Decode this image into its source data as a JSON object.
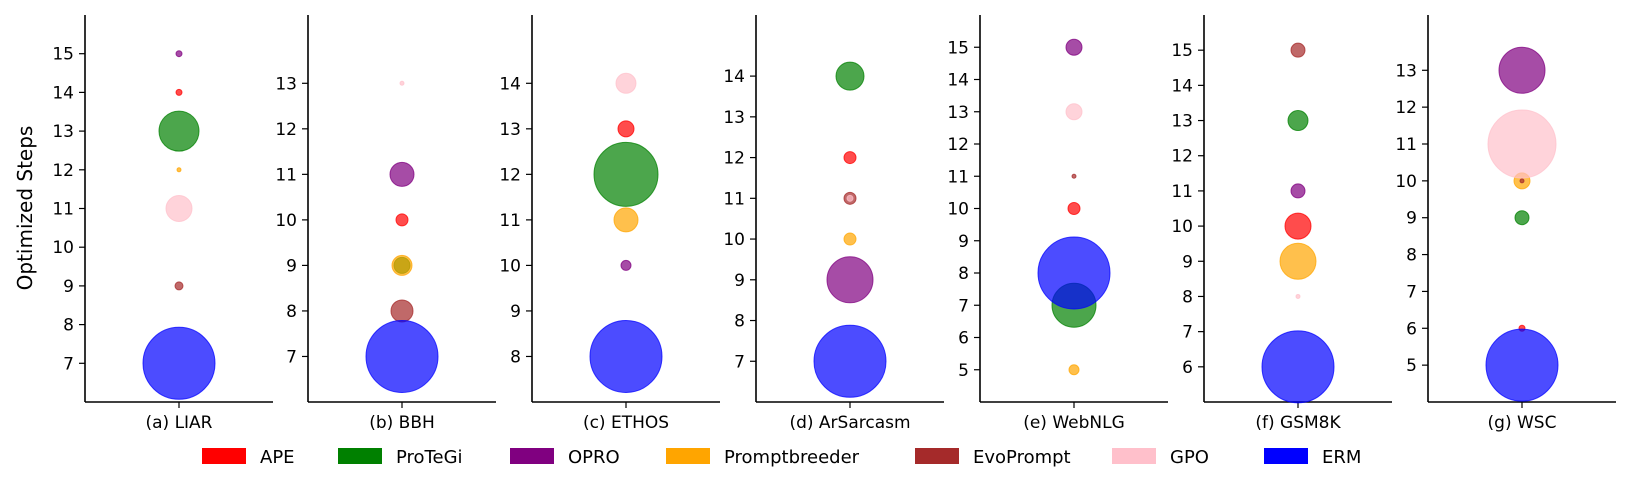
{
  "figure": {
    "ylabel": "Optimized Steps",
    "legend_placement": "bottom-center"
  },
  "methods": [
    {
      "name": "APE",
      "color": "#ff0000"
    },
    {
      "name": "ProTeGi",
      "color": "#008000"
    },
    {
      "name": "OPRO",
      "color": "#800080"
    },
    {
      "name": "Promptbreeder",
      "color": "#ffa500"
    },
    {
      "name": "EvoPrompt",
      "color": "#a52a2a"
    },
    {
      "name": "GPO",
      "color": "#ffc0cb"
    },
    {
      "name": "ERM",
      "color": "#0000ff"
    }
  ],
  "chart_data": [
    {
      "type": "scatter",
      "title": "(a) LIAR",
      "ylim": [
        6,
        16
      ],
      "yticks": [
        7,
        8,
        9,
        10,
        11,
        12,
        13,
        14,
        15
      ],
      "points": [
        {
          "method": "APE",
          "y": 14,
          "size": 3
        },
        {
          "method": "ProTeGi",
          "y": 13,
          "size": 20
        },
        {
          "method": "OPRO",
          "y": 15,
          "size": 3
        },
        {
          "method": "Promptbreeder",
          "y": 12,
          "size": 2
        },
        {
          "method": "EvoPrompt",
          "y": 9,
          "size": 4
        },
        {
          "method": "GPO",
          "y": 11,
          "size": 13
        },
        {
          "method": "ERM",
          "y": 7,
          "size": 36
        }
      ]
    },
    {
      "type": "scatter",
      "title": "(b) BBH",
      "ylim": [
        6,
        14.5
      ],
      "yticks": [
        7,
        8,
        9,
        10,
        11,
        12,
        13
      ],
      "points": [
        {
          "method": "APE",
          "y": 10,
          "size": 6
        },
        {
          "method": "ProTeGi",
          "y": 9,
          "size": 8
        },
        {
          "method": "OPRO",
          "y": 11,
          "size": 12
        },
        {
          "method": "Promptbreeder",
          "y": 9,
          "size": 10
        },
        {
          "method": "EvoPrompt",
          "y": 8,
          "size": 11
        },
        {
          "method": "GPO",
          "y": 13,
          "size": 2
        },
        {
          "method": "ERM",
          "y": 7,
          "size": 36
        }
      ]
    },
    {
      "type": "scatter",
      "title": "(c) ETHOS",
      "ylim": [
        7,
        15.5
      ],
      "yticks": [
        8,
        9,
        10,
        11,
        12,
        13,
        14
      ],
      "points": [
        {
          "method": "APE",
          "y": 13,
          "size": 8
        },
        {
          "method": "ProTeGi",
          "y": 12,
          "size": 32
        },
        {
          "method": "OPRO",
          "y": 10,
          "size": 5
        },
        {
          "method": "Promptbreeder",
          "y": 11,
          "size": 12
        },
        {
          "method": "GPO",
          "y": 14,
          "size": 10
        },
        {
          "method": "ERM",
          "y": 8,
          "size": 36
        }
      ]
    },
    {
      "type": "scatter",
      "title": "(d) ArSarcasm",
      "ylim": [
        6,
        15.5
      ],
      "yticks": [
        7,
        8,
        9,
        10,
        11,
        12,
        13,
        14
      ],
      "points": [
        {
          "method": "APE",
          "y": 12,
          "size": 6
        },
        {
          "method": "ProTeGi",
          "y": 14,
          "size": 14
        },
        {
          "method": "OPRO",
          "y": 9,
          "size": 23
        },
        {
          "method": "Promptbreeder",
          "y": 10,
          "size": 6
        },
        {
          "method": "EvoPrompt",
          "y": 11,
          "size": 6
        },
        {
          "method": "GPO",
          "y": 11,
          "size": 3
        },
        {
          "method": "ERM",
          "y": 7,
          "size": 36
        }
      ]
    },
    {
      "type": "scatter",
      "title": "(e) WebNLG",
      "ylim": [
        4,
        16
      ],
      "yticks": [
        5,
        6,
        7,
        8,
        9,
        10,
        11,
        12,
        13,
        14,
        15
      ],
      "points": [
        {
          "method": "APE",
          "y": 10,
          "size": 6
        },
        {
          "method": "ProTeGi",
          "y": 7,
          "size": 22
        },
        {
          "method": "OPRO",
          "y": 15,
          "size": 8
        },
        {
          "method": "Promptbreeder",
          "y": 5,
          "size": 5
        },
        {
          "method": "EvoPrompt",
          "y": 11,
          "size": 2
        },
        {
          "method": "GPO",
          "y": 13,
          "size": 8
        },
        {
          "method": "ERM",
          "y": 8,
          "size": 36
        }
      ]
    },
    {
      "type": "scatter",
      "title": "(f) GSM8K",
      "ylim": [
        5,
        16
      ],
      "yticks": [
        6,
        7,
        8,
        9,
        10,
        11,
        12,
        13,
        14,
        15
      ],
      "points": [
        {
          "method": "APE",
          "y": 10,
          "size": 13
        },
        {
          "method": "ProTeGi",
          "y": 13,
          "size": 10
        },
        {
          "method": "OPRO",
          "y": 11,
          "size": 7
        },
        {
          "method": "Promptbreeder",
          "y": 9,
          "size": 18
        },
        {
          "method": "EvoPrompt",
          "y": 15,
          "size": 7
        },
        {
          "method": "GPO",
          "y": 8,
          "size": 2
        },
        {
          "method": "ERM",
          "y": 6,
          "size": 36
        }
      ]
    },
    {
      "type": "scatter",
      "title": "(g) WSC",
      "ylim": [
        4,
        14.5
      ],
      "yticks": [
        5,
        6,
        7,
        8,
        9,
        10,
        11,
        12,
        13
      ],
      "points": [
        {
          "method": "APE",
          "y": 6,
          "size": 3
        },
        {
          "method": "ProTeGi",
          "y": 9,
          "size": 7
        },
        {
          "method": "OPRO",
          "y": 13,
          "size": 23
        },
        {
          "method": "Promptbreeder",
          "y": 10,
          "size": 8
        },
        {
          "method": "EvoPrompt",
          "y": 10,
          "size": 2
        },
        {
          "method": "GPO",
          "y": 11,
          "size": 34
        },
        {
          "method": "ERM",
          "y": 5,
          "size": 36
        }
      ]
    }
  ]
}
